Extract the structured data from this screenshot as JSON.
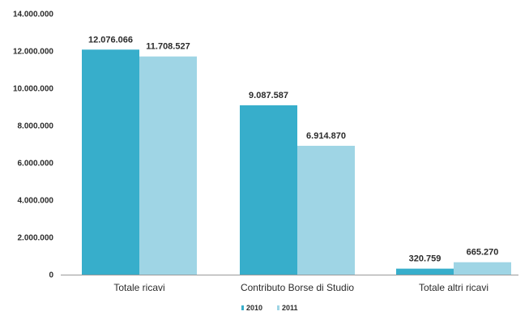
{
  "chart_data": {
    "type": "bar",
    "title": "",
    "xlabel": "",
    "ylabel": "",
    "categories": [
      "Totale ricavi",
      "Contributo Borse di Studio",
      "Totale altri ricavi"
    ],
    "series": [
      {
        "name": "2010",
        "color": "#37aecb",
        "values": [
          12076066,
          9087587,
          320759
        ],
        "labels": [
          "12.076.066",
          "9.087.587",
          "320.759"
        ]
      },
      {
        "name": "2011",
        "color": "#9fd5e5",
        "values": [
          11708527,
          6914870,
          665270
        ],
        "labels": [
          "11.708.527",
          "6.914.870",
          "665.270"
        ]
      }
    ],
    "ylim": [
      0,
      14000000
    ],
    "yticks": [
      0,
      2000000,
      4000000,
      6000000,
      8000000,
      10000000,
      12000000,
      14000000
    ],
    "ytick_labels": [
      "0",
      "2.000.000",
      "4.000.000",
      "6.000.000",
      "8.000.000",
      "10.000.000",
      "12.000.000",
      "14.000.000"
    ],
    "grid": false,
    "legend": "bottom-center"
  }
}
